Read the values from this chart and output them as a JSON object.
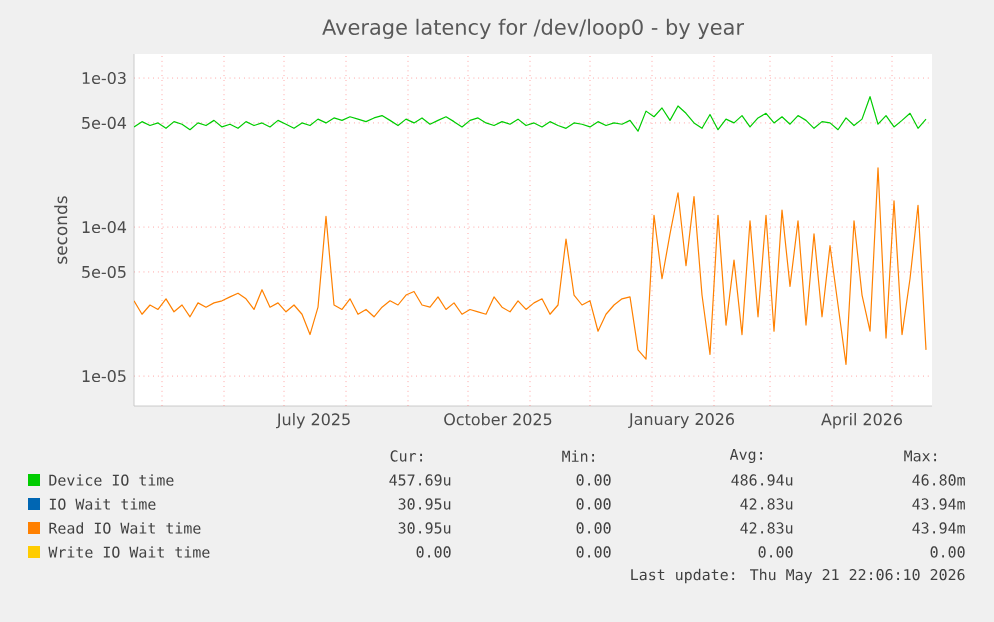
{
  "chart_data": {
    "type": "line",
    "title": "Average latency for /dev/loop0 - by year",
    "ylabel": "seconds",
    "log": true,
    "grid": true,
    "legend": "bottom",
    "xlim": [
      "2025-04-17",
      "2026-05-21"
    ],
    "ylim": [
      6.3e-06,
      0.00145
    ],
    "yticks": [
      {
        "value": 0.001,
        "label": "1e-03"
      },
      {
        "value": 0.0005,
        "label": "5e-04"
      },
      {
        "value": 0.0001,
        "label": "1e-04"
      },
      {
        "value": 5e-05,
        "label": "5e-05"
      },
      {
        "value": 1e-05,
        "label": "1e-05"
      }
    ],
    "xticks": [
      {
        "value": "2025-07-16",
        "label": "July 2025"
      },
      {
        "value": "2025-10-16",
        "label": "October 2025"
      },
      {
        "value": "2026-01-16",
        "label": "January 2026"
      },
      {
        "value": "2026-04-16",
        "label": "April 2026"
      },
      {
        "value": "2025-05-01",
        "label": null
      },
      {
        "value": "2025-06-01",
        "label": null
      },
      {
        "value": "2025-07-01",
        "label": null
      },
      {
        "value": "2025-08-01",
        "label": null
      },
      {
        "value": "2025-09-01",
        "label": null
      },
      {
        "value": "2025-10-01",
        "label": null
      },
      {
        "value": "2025-11-01",
        "label": null
      },
      {
        "value": "2025-12-01",
        "label": null
      },
      {
        "value": "2026-01-01",
        "label": null
      },
      {
        "value": "2026-02-01",
        "label": null
      },
      {
        "value": "2026-03-01",
        "label": null
      },
      {
        "value": "2026-04-01",
        "label": null
      },
      {
        "value": "2026-05-01",
        "label": null
      }
    ],
    "x": [
      "2025-04-17",
      "2025-04-21",
      "2025-04-25",
      "2025-04-29",
      "2025-05-03",
      "2025-05-07",
      "2025-05-11",
      "2025-05-15",
      "2025-05-19",
      "2025-05-23",
      "2025-05-27",
      "2025-05-31",
      "2025-06-04",
      "2025-06-08",
      "2025-06-12",
      "2025-06-16",
      "2025-06-20",
      "2025-06-24",
      "2025-06-28",
      "2025-07-02",
      "2025-07-06",
      "2025-07-10",
      "2025-07-14",
      "2025-07-18",
      "2025-07-22",
      "2025-07-26",
      "2025-07-30",
      "2025-08-03",
      "2025-08-07",
      "2025-08-11",
      "2025-08-15",
      "2025-08-19",
      "2025-08-23",
      "2025-08-27",
      "2025-08-31",
      "2025-09-04",
      "2025-09-08",
      "2025-09-12",
      "2025-09-16",
      "2025-09-20",
      "2025-09-24",
      "2025-09-28",
      "2025-10-02",
      "2025-10-06",
      "2025-10-10",
      "2025-10-14",
      "2025-10-18",
      "2025-10-22",
      "2025-10-26",
      "2025-10-30",
      "2025-11-03",
      "2025-11-07",
      "2025-11-11",
      "2025-11-15",
      "2025-11-19",
      "2025-11-23",
      "2025-11-27",
      "2025-12-01",
      "2025-12-05",
      "2025-12-09",
      "2025-12-13",
      "2025-12-17",
      "2025-12-21",
      "2025-12-25",
      "2025-12-29",
      "2026-01-02",
      "2026-01-06",
      "2026-01-10",
      "2026-01-14",
      "2026-01-18",
      "2026-01-22",
      "2026-01-26",
      "2026-01-30",
      "2026-02-03",
      "2026-02-07",
      "2026-02-11",
      "2026-02-15",
      "2026-02-19",
      "2026-02-23",
      "2026-02-27",
      "2026-03-03",
      "2026-03-07",
      "2026-03-11",
      "2026-03-15",
      "2026-03-19",
      "2026-03-23",
      "2026-03-27",
      "2026-03-31",
      "2026-04-04",
      "2026-04-08",
      "2026-04-12",
      "2026-04-16",
      "2026-04-20",
      "2026-04-24",
      "2026-04-28",
      "2026-05-02",
      "2026-05-06",
      "2026-05-10",
      "2026-05-14",
      "2026-05-18"
    ],
    "series": [
      {
        "name": "Device IO time",
        "color": "#00cc00",
        "values": [
          0.00047,
          0.00051,
          0.00048,
          0.0005,
          0.00046,
          0.00051,
          0.00049,
          0.00045,
          0.0005,
          0.00048,
          0.00052,
          0.00047,
          0.00049,
          0.00046,
          0.00051,
          0.00048,
          0.0005,
          0.00047,
          0.00052,
          0.00049,
          0.00046,
          0.0005,
          0.00048,
          0.00053,
          0.0005,
          0.00054,
          0.00052,
          0.00055,
          0.00053,
          0.00051,
          0.00054,
          0.00056,
          0.00052,
          0.00048,
          0.00053,
          0.0005,
          0.00054,
          0.00049,
          0.00052,
          0.00055,
          0.00051,
          0.00047,
          0.00052,
          0.00054,
          0.0005,
          0.00048,
          0.00051,
          0.00049,
          0.00053,
          0.00048,
          0.0005,
          0.00047,
          0.00051,
          0.00048,
          0.00046,
          0.0005,
          0.00049,
          0.00047,
          0.00051,
          0.00048,
          0.0005,
          0.00049,
          0.00052,
          0.00044,
          0.0006,
          0.00055,
          0.00063,
          0.00052,
          0.00065,
          0.00058,
          0.0005,
          0.00046,
          0.00057,
          0.00045,
          0.00053,
          0.0005,
          0.00056,
          0.00047,
          0.00054,
          0.00058,
          0.0005,
          0.00055,
          0.00049,
          0.00056,
          0.00052,
          0.00046,
          0.00051,
          0.0005,
          0.00045,
          0.00054,
          0.00048,
          0.00053,
          0.00075,
          0.00049,
          0.00056,
          0.00047,
          0.00052,
          0.00058,
          0.00046,
          0.00053
        ]
      },
      {
        "name": "IO Wait time",
        "color": "#0066b3",
        "values": [
          null,
          null,
          null,
          null,
          null,
          null,
          null,
          null,
          null,
          null,
          null,
          null,
          null,
          null,
          null,
          null,
          null,
          null,
          null,
          null,
          null,
          null,
          null,
          null,
          null,
          null,
          null,
          null,
          null,
          null,
          null,
          null,
          null,
          null,
          null,
          null,
          null,
          null,
          null,
          null,
          null,
          null,
          null,
          null,
          null,
          null,
          null,
          null,
          null,
          null,
          null,
          null,
          null,
          null,
          null,
          null,
          null,
          null,
          null,
          null,
          null,
          null,
          null,
          null,
          null,
          null,
          null,
          null,
          null,
          null,
          null,
          null,
          null,
          null,
          null,
          null,
          null,
          null,
          null,
          null,
          null,
          null,
          null,
          null,
          null,
          null,
          null,
          null,
          null,
          null,
          null,
          null,
          null,
          null,
          null,
          null,
          null,
          null,
          null,
          null
        ]
      },
      {
        "name": "Read IO Wait time",
        "color": "#ff8000",
        "values": [
          3.2e-05,
          2.6e-05,
          3e-05,
          2.8e-05,
          3.3e-05,
          2.7e-05,
          3e-05,
          2.5e-05,
          3.1e-05,
          2.9e-05,
          3.1e-05,
          3.2e-05,
          3.4e-05,
          3.6e-05,
          3.3e-05,
          2.8e-05,
          3.8e-05,
          2.9e-05,
          3.1e-05,
          2.7e-05,
          3e-05,
          2.6e-05,
          1.9e-05,
          2.9e-05,
          0.000118,
          3e-05,
          2.8e-05,
          3.3e-05,
          2.6e-05,
          2.8e-05,
          2.5e-05,
          2.9e-05,
          3.2e-05,
          3e-05,
          3.5e-05,
          3.7e-05,
          3e-05,
          2.9e-05,
          3.4e-05,
          2.8e-05,
          3.1e-05,
          2.6e-05,
          2.8e-05,
          2.7e-05,
          2.6e-05,
          3.4e-05,
          2.9e-05,
          2.7e-05,
          3.2e-05,
          2.8e-05,
          3.1e-05,
          3.3e-05,
          2.6e-05,
          3e-05,
          8.3e-05,
          3.5e-05,
          3e-05,
          3.2e-05,
          2e-05,
          2.6e-05,
          3e-05,
          3.3e-05,
          3.4e-05,
          1.5e-05,
          1.3e-05,
          0.00012,
          4.5e-05,
          9e-05,
          0.00017,
          5.5e-05,
          0.00016,
          3.5e-05,
          1.4e-05,
          0.00012,
          2.2e-05,
          6e-05,
          1.9e-05,
          0.00011,
          2.5e-05,
          0.00012,
          2e-05,
          0.00013,
          4e-05,
          0.00011,
          2.2e-05,
          9e-05,
          2.5e-05,
          7.5e-05,
          3e-05,
          1.2e-05,
          0.00011,
          3.5e-05,
          2e-05,
          0.00025,
          1.8e-05,
          0.00015,
          1.9e-05,
          4.5e-05,
          0.00014,
          1.5e-05
        ]
      },
      {
        "name": "Write IO Wait time",
        "color": "#ffcc00",
        "values": [
          null,
          null,
          null,
          null,
          null,
          null,
          null,
          null,
          null,
          null,
          null,
          null,
          null,
          null,
          null,
          null,
          null,
          null,
          null,
          null,
          null,
          null,
          null,
          null,
          null,
          null,
          null,
          null,
          null,
          null,
          null,
          null,
          null,
          null,
          null,
          null,
          null,
          null,
          null,
          null,
          null,
          null,
          null,
          null,
          null,
          null,
          null,
          null,
          null,
          null,
          null,
          null,
          null,
          null,
          null,
          null,
          null,
          null,
          null,
          null,
          null,
          null,
          null,
          null,
          null,
          null,
          null,
          null,
          null,
          null,
          null,
          null,
          null,
          null,
          null,
          null,
          null,
          null,
          null,
          null,
          null,
          null,
          null,
          null,
          null,
          null,
          null,
          null,
          null,
          null,
          null,
          null,
          null,
          null,
          null,
          null,
          null,
          null,
          null,
          null
        ]
      }
    ],
    "annotations": [
      "Cur:",
      "Min:",
      "Avg:",
      "Max:",
      "457.69u",
      "0.00",
      "486.94u",
      "46.80m",
      "30.95u",
      "0.00",
      "42.83u",
      "43.94m",
      "30.95u",
      "0.00",
      "42.83u",
      "43.94m",
      "0.00",
      "0.00",
      "0.00",
      "0.00",
      "Last update: Thu May 21 22:06:10 2026"
    ]
  }
}
